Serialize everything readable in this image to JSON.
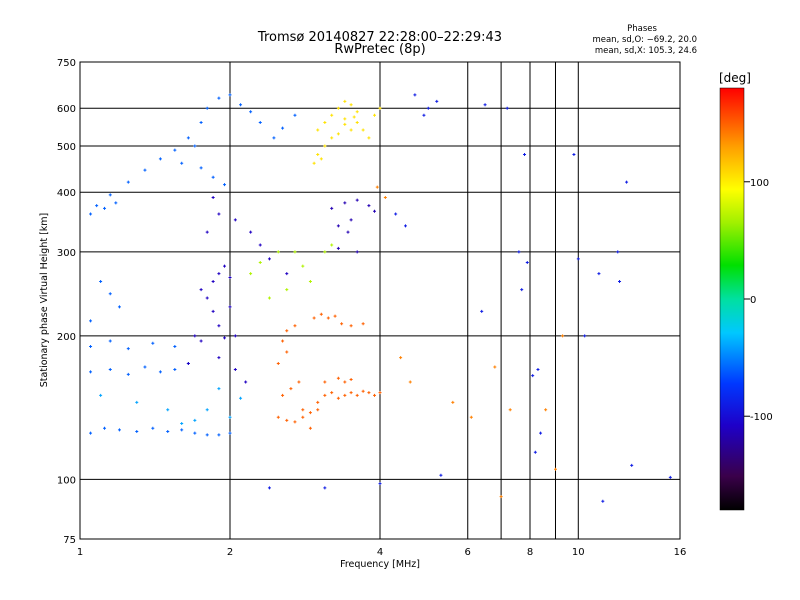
{
  "chart_data": {
    "type": "scatter",
    "title": "Tromsø 20140827 22:28:00–22:29:43",
    "subtitle": "RwPretec (8p)",
    "xlabel": "Frequency [MHz]",
    "ylabel": "Stationary phase Virtual Height [km]",
    "x_scale": "log",
    "y_scale": "log",
    "xlim": [
      1,
      16
    ],
    "ylim": [
      75,
      750
    ],
    "x_ticks": [
      1,
      2,
      4,
      6,
      8,
      10,
      16
    ],
    "y_ticks": [
      75,
      100,
      200,
      300,
      400,
      500,
      600,
      750
    ],
    "grid": true,
    "colorbar": {
      "label": "[deg]",
      "range": [
        -180,
        180
      ],
      "ticks": [
        100,
        0,
        -100
      ]
    },
    "phase_info": {
      "heading": "Phases",
      "line1": "mean, sd,O: −69.2, 20.0",
      "line2": "mean, sd,X: 105.3, 24.6"
    },
    "series": [
      {
        "points": [
          [
            1.05,
            125
          ],
          [
            1.12,
            128
          ],
          [
            1.2,
            127
          ],
          [
            1.3,
            126
          ],
          [
            1.4,
            128
          ],
          [
            1.5,
            126
          ],
          [
            1.6,
            127
          ],
          [
            1.7,
            125
          ],
          [
            1.8,
            124
          ],
          [
            1.9,
            124
          ],
          [
            2.0,
            125
          ],
          [
            1.05,
            168
          ],
          [
            1.15,
            170
          ],
          [
            1.25,
            166
          ],
          [
            1.35,
            172
          ],
          [
            1.45,
            168
          ],
          [
            1.55,
            170
          ],
          [
            1.65,
            175
          ],
          [
            1.05,
            190
          ],
          [
            1.15,
            195
          ],
          [
            1.25,
            188
          ],
          [
            1.4,
            193
          ],
          [
            1.55,
            190
          ],
          [
            1.1,
            260
          ],
          [
            1.15,
            245
          ],
          [
            1.2,
            230
          ],
          [
            1.05,
            215
          ],
          [
            1.08,
            375
          ],
          [
            1.12,
            370
          ],
          [
            1.18,
            380
          ],
          [
            1.05,
            360
          ],
          [
            1.15,
            395
          ],
          [
            1.25,
            420
          ],
          [
            1.35,
            445
          ],
          [
            1.45,
            470
          ],
          [
            1.55,
            490
          ],
          [
            1.65,
            520
          ],
          [
            1.75,
            560
          ],
          [
            1.8,
            600
          ],
          [
            1.9,
            630
          ],
          [
            2.0,
            640
          ],
          [
            2.1,
            610
          ],
          [
            2.2,
            590
          ],
          [
            2.3,
            560
          ],
          [
            2.45,
            520
          ],
          [
            2.55,
            545
          ],
          [
            2.7,
            580
          ],
          [
            1.75,
            450
          ],
          [
            1.85,
            430
          ],
          [
            1.95,
            415
          ],
          [
            1.6,
            460
          ],
          [
            1.7,
            500
          ]
        ],
        "phase": -60
      },
      {
        "points": [
          [
            1.6,
            131
          ],
          [
            1.8,
            140
          ],
          [
            2.0,
            135
          ],
          [
            2.1,
            148
          ],
          [
            1.9,
            155
          ],
          [
            1.5,
            140
          ],
          [
            1.7,
            133
          ],
          [
            1.3,
            145
          ],
          [
            1.1,
            150
          ]
        ],
        "phase": -40
      },
      {
        "points": [
          [
            1.75,
            250
          ],
          [
            1.85,
            260
          ],
          [
            1.9,
            270
          ],
          [
            1.95,
            280
          ],
          [
            2.0,
            265
          ],
          [
            1.8,
            240
          ],
          [
            1.85,
            225
          ],
          [
            1.9,
            210
          ],
          [
            1.95,
            198
          ],
          [
            2.05,
            200
          ],
          [
            1.75,
            195
          ],
          [
            1.7,
            200
          ],
          [
            2.0,
            230
          ],
          [
            1.8,
            330
          ],
          [
            1.9,
            360
          ],
          [
            1.85,
            390
          ],
          [
            2.05,
            350
          ],
          [
            2.2,
            330
          ],
          [
            2.3,
            310
          ],
          [
            2.4,
            290
          ],
          [
            2.6,
            270
          ],
          [
            1.65,
            175
          ],
          [
            1.9,
            180
          ],
          [
            2.05,
            170
          ],
          [
            2.15,
            160
          ]
        ],
        "phase": -110
      },
      {
        "points": [
          [
            2.5,
            135
          ],
          [
            2.6,
            133
          ],
          [
            2.7,
            132
          ],
          [
            2.8,
            135
          ],
          [
            2.9,
            138
          ],
          [
            3.0,
            140
          ],
          [
            2.55,
            150
          ],
          [
            2.65,
            155
          ],
          [
            2.75,
            160
          ],
          [
            2.5,
            175
          ],
          [
            2.6,
            185
          ],
          [
            2.55,
            195
          ],
          [
            2.6,
            205
          ],
          [
            2.7,
            210
          ],
          [
            3.0,
            145
          ],
          [
            3.1,
            150
          ],
          [
            3.2,
            152
          ],
          [
            3.3,
            148
          ],
          [
            3.4,
            150
          ],
          [
            3.5,
            152
          ],
          [
            3.6,
            150
          ],
          [
            3.7,
            153
          ],
          [
            3.8,
            152
          ],
          [
            3.9,
            150
          ],
          [
            4.0,
            152
          ],
          [
            3.3,
            163
          ],
          [
            3.4,
            160
          ],
          [
            3.5,
            162
          ],
          [
            2.95,
            218
          ],
          [
            3.05,
            222
          ],
          [
            3.15,
            218
          ],
          [
            3.25,
            220
          ],
          [
            3.35,
            212
          ],
          [
            3.5,
            210
          ],
          [
            3.7,
            212
          ],
          [
            2.8,
            140
          ],
          [
            2.9,
            128
          ],
          [
            3.1,
            160
          ]
        ],
        "phase": 150
      },
      {
        "points": [
          [
            3.0,
            540
          ],
          [
            3.1,
            560
          ],
          [
            3.2,
            580
          ],
          [
            3.3,
            600
          ],
          [
            3.4,
            620
          ],
          [
            3.5,
            610
          ],
          [
            3.6,
            590
          ],
          [
            3.4,
            555
          ],
          [
            3.5,
            540
          ],
          [
            3.3,
            530
          ],
          [
            3.2,
            520
          ],
          [
            3.6,
            560
          ],
          [
            3.7,
            540
          ],
          [
            3.8,
            520
          ],
          [
            3.9,
            580
          ],
          [
            4.0,
            600
          ],
          [
            3.1,
            500
          ],
          [
            3.0,
            480
          ],
          [
            2.95,
            460
          ],
          [
            3.05,
            470
          ],
          [
            3.4,
            570
          ],
          [
            3.55,
            575
          ]
        ],
        "phase": 105
      },
      {
        "points": [
          [
            3.2,
            370
          ],
          [
            3.4,
            380
          ],
          [
            3.6,
            385
          ],
          [
            3.8,
            375
          ],
          [
            3.9,
            365
          ],
          [
            3.3,
            340
          ],
          [
            3.5,
            350
          ],
          [
            3.45,
            330
          ],
          [
            3.3,
            305
          ],
          [
            3.6,
            300
          ]
        ],
        "phase": -115
      },
      {
        "points": [
          [
            2.2,
            270
          ],
          [
            2.3,
            285
          ],
          [
            2.5,
            300
          ],
          [
            2.7,
            300
          ],
          [
            2.9,
            260
          ],
          [
            3.1,
            300
          ],
          [
            3.2,
            310
          ],
          [
            2.8,
            280
          ],
          [
            2.6,
            250
          ],
          [
            2.4,
            240
          ]
        ],
        "phase": 70
      },
      {
        "points": [
          [
            4.7,
            640
          ],
          [
            5.0,
            600
          ],
          [
            5.2,
            620
          ],
          [
            4.9,
            580
          ],
          [
            6.5,
            610
          ],
          [
            7.2,
            600
          ],
          [
            7.8,
            480
          ],
          [
            9.8,
            480
          ],
          [
            12.5,
            420
          ],
          [
            4.3,
            360
          ],
          [
            4.5,
            340
          ],
          [
            7.6,
            300
          ],
          [
            7.9,
            285
          ],
          [
            10.0,
            290
          ],
          [
            11.0,
            270
          ],
          [
            12.1,
            260
          ],
          [
            12.0,
            300
          ],
          [
            7.7,
            250
          ],
          [
            6.4,
            225
          ],
          [
            8.3,
            170
          ],
          [
            8.1,
            165
          ],
          [
            8.4,
            125
          ],
          [
            8.2,
            114
          ],
          [
            10.3,
            200
          ],
          [
            11.2,
            90
          ],
          [
            12.8,
            107
          ],
          [
            15.3,
            101
          ],
          [
            2.4,
            96
          ],
          [
            3.1,
            96
          ],
          [
            4.0,
            98
          ],
          [
            5.3,
            102
          ]
        ],
        "phase": -90
      },
      {
        "points": [
          [
            3.95,
            410
          ],
          [
            4.1,
            390
          ],
          [
            4.4,
            180
          ],
          [
            4.6,
            160
          ],
          [
            6.1,
            135
          ],
          [
            5.6,
            145
          ],
          [
            7.3,
            140
          ],
          [
            9.0,
            105
          ],
          [
            7.0,
            92
          ],
          [
            6.8,
            172
          ],
          [
            8.6,
            140
          ],
          [
            9.3,
            200
          ]
        ],
        "phase": 140
      }
    ]
  }
}
